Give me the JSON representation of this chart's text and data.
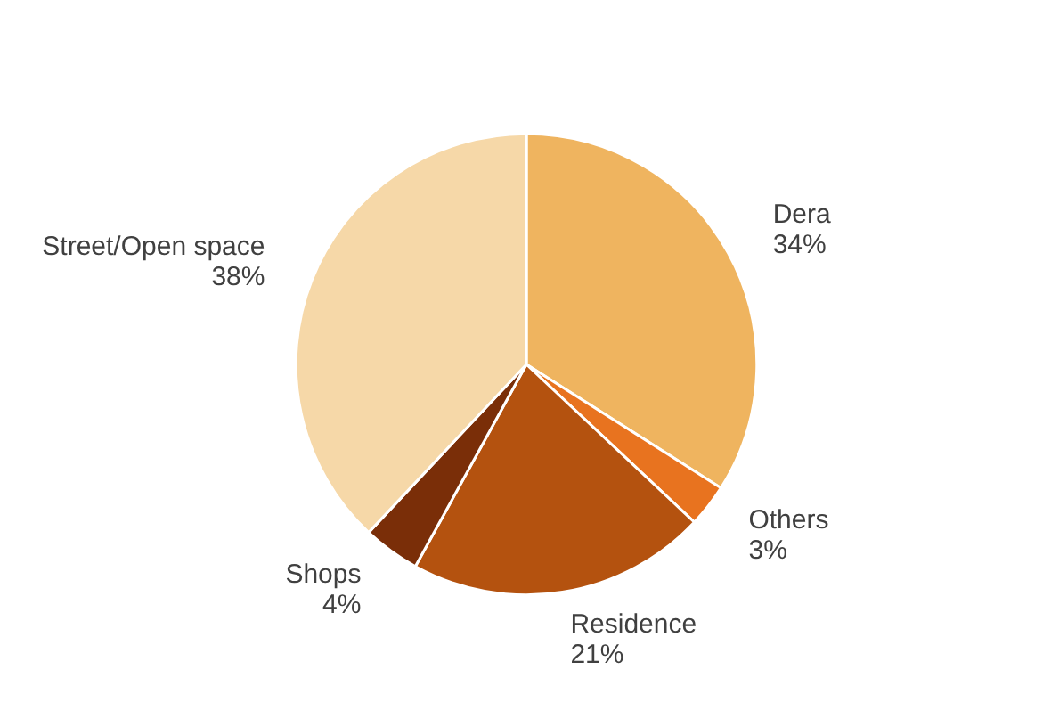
{
  "chart_data": {
    "type": "pie",
    "categories": [
      "Dera",
      "Others",
      "Residence",
      "Shops",
      "Street/Open space"
    ],
    "values": [
      34,
      3,
      21,
      4,
      38
    ],
    "value_labels": [
      "34%",
      "3%",
      "21%",
      "4%",
      "38%"
    ],
    "colors": [
      "#efb45f",
      "#e8731f",
      "#b4520f",
      "#7a2e08",
      "#f6d8a8"
    ]
  }
}
